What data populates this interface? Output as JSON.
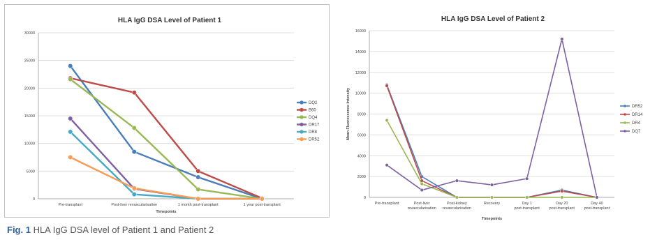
{
  "caption": {
    "label": "Fig. 1",
    "text": " HLA IgG DSA level of Patient 1 and Patient 2"
  },
  "chart_data": [
    {
      "type": "line",
      "title": "HLA IgG DSA Level of Patient 1",
      "xlabel": "Timepoints",
      "ylabel": "",
      "categories": [
        "Pre-transplant",
        "Post-liver revascularisation",
        "1 month post-transplant",
        "1 year post-transplant"
      ],
      "ylim": [
        0,
        30000
      ],
      "yticks": [
        0,
        5000,
        10000,
        15000,
        20000,
        25000,
        30000
      ],
      "grid": true,
      "legend": "right",
      "series": [
        {
          "name": "DQ2",
          "color": "#4a7ebb",
          "values": [
            24000,
            8500,
            3900,
            0
          ]
        },
        {
          "name": "B60",
          "color": "#be4b48",
          "values": [
            21800,
            19200,
            5000,
            100
          ]
        },
        {
          "name": "DQ4",
          "color": "#98b954",
          "values": [
            21600,
            12800,
            1700,
            0
          ]
        },
        {
          "name": "DR17",
          "color": "#7d60a0",
          "values": [
            14500,
            1800,
            0,
            0
          ]
        },
        {
          "name": "DR8",
          "color": "#46aac4",
          "values": [
            12100,
            800,
            0,
            0
          ]
        },
        {
          "name": "DR52",
          "color": "#f59d56",
          "values": [
            7500,
            1900,
            0,
            0
          ]
        }
      ]
    },
    {
      "type": "line",
      "title": "HLA IgG DSA Level of Patient 2",
      "xlabel": "Timepoints",
      "ylabel": "Mean Fluorescence Intensity",
      "categories": [
        "Pre-transplant",
        "Post-liver revascularisation",
        "Post-kidney revascularisation",
        "Recovery",
        "Day 1 post-transplant",
        "Day 20 post-transplant",
        "Day 40 post-transplant"
      ],
      "ylim": [
        0,
        16000
      ],
      "yticks": [
        0,
        2000,
        4000,
        6000,
        8000,
        10000,
        12000,
        14000,
        16000
      ],
      "grid": true,
      "legend": "right",
      "series": [
        {
          "name": "DR52",
          "color": "#4a7ebb",
          "values": [
            10800,
            2000,
            0,
            0,
            0,
            700,
            0
          ]
        },
        {
          "name": "DR14",
          "color": "#be4b48",
          "values": [
            10700,
            1600,
            0,
            0,
            0,
            600,
            0
          ]
        },
        {
          "name": "DR4",
          "color": "#98b954",
          "values": [
            7400,
            1300,
            0,
            0,
            0,
            0,
            0
          ]
        },
        {
          "name": "DQ7",
          "color": "#7d60a0",
          "values": [
            3100,
            700,
            1600,
            1200,
            1800,
            15200,
            0
          ]
        }
      ]
    }
  ]
}
